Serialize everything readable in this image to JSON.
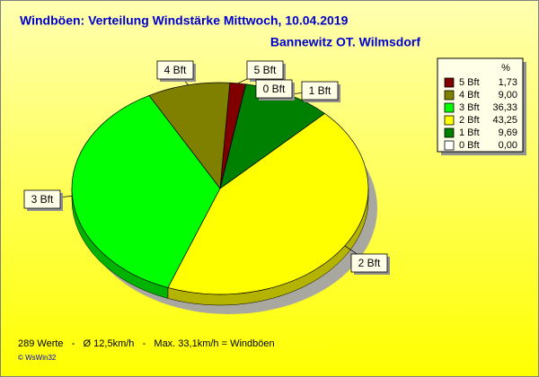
{
  "chart_data": {
    "type": "pie",
    "title": "Windböen: Verteilung Windstärke  Mittwoch, 10.04.2019",
    "subtitle": "Bannewitz OT. Wilmsdorf",
    "categories": [
      "5 Bft",
      "4 Bft",
      "3 Bft",
      "2 Bft",
      "1 Bft",
      "0 Bft"
    ],
    "values": [
      1.73,
      9.0,
      36.33,
      43.25,
      9.69,
      0.0
    ],
    "value_labels": [
      "1,73",
      "9,00",
      "36,33",
      "43,25",
      "9,69",
      "0,00"
    ],
    "colors": [
      "#800000",
      "#808000",
      "#00ff00",
      "#ffff00",
      "#008000",
      "#ffffff"
    ],
    "legend_title": "%",
    "notes": [
      "289 Werte   -   Ø 12,5km/h   -   Max. 33,1km/h = Windböen",
      "© WsWin32"
    ]
  }
}
